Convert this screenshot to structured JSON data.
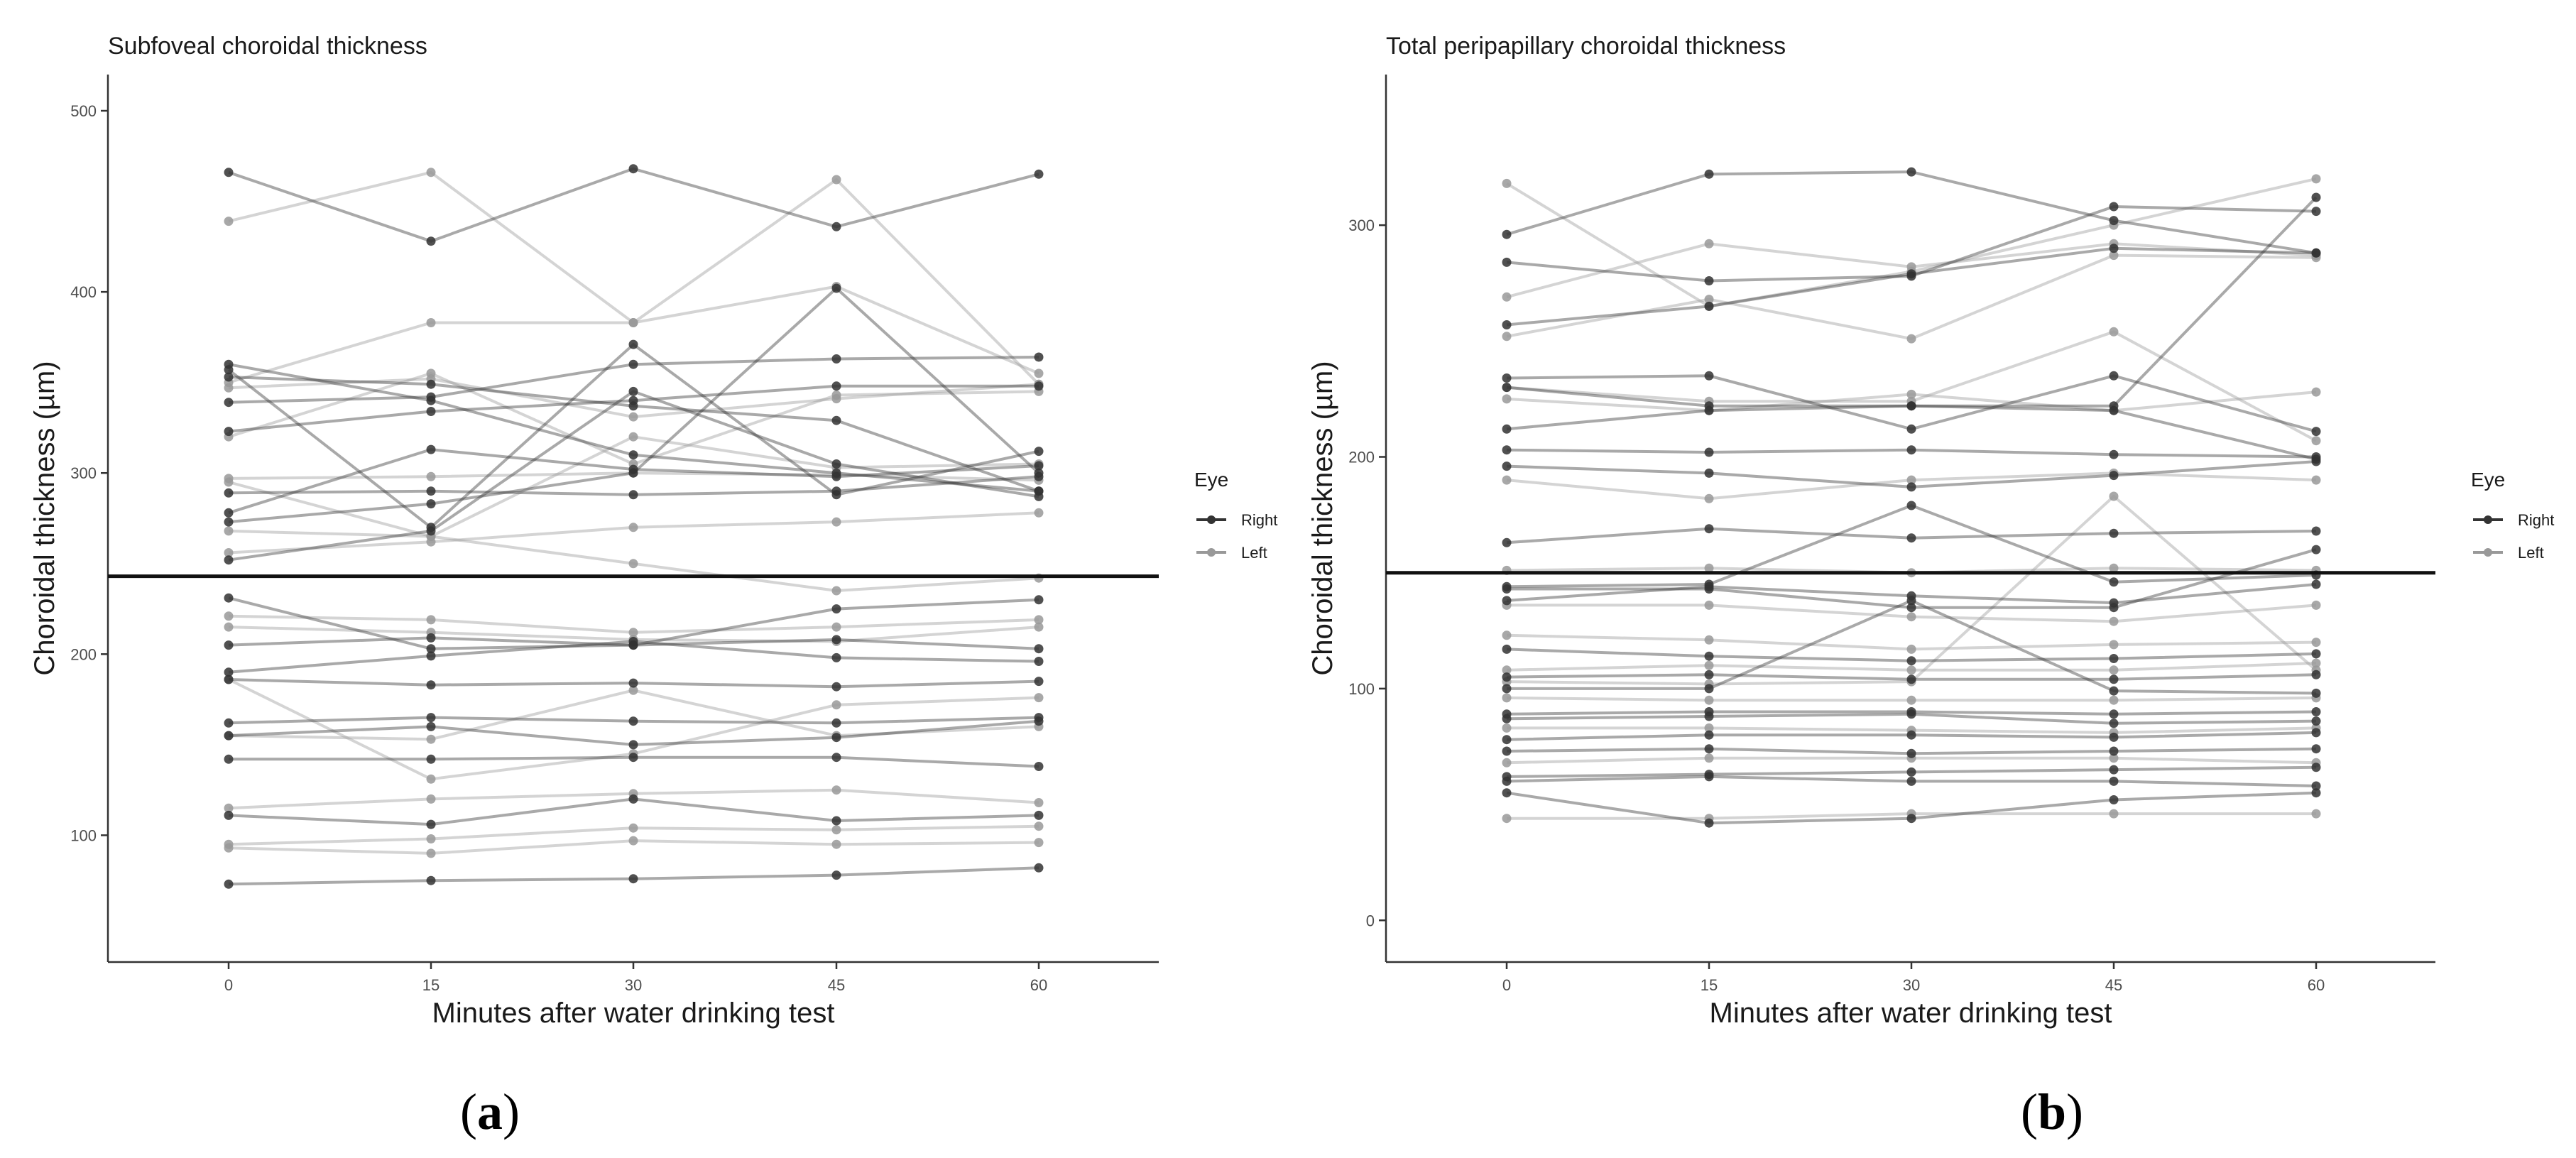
{
  "chart_data": [
    {
      "panel": "a",
      "panel_label": {
        "open": "(",
        "letter": "a",
        "close": ")"
      },
      "type": "line",
      "title": "Subfoveal choroidal thickness",
      "xlabel": "Minutes after water drinking test",
      "ylabel": "Choroidal thickness (µm)",
      "x": [
        0,
        15,
        30,
        45,
        60
      ],
      "xticks": [
        "0",
        "15",
        "30",
        "45",
        "60"
      ],
      "ylim": [
        30,
        520
      ],
      "yticks": [
        100,
        200,
        300,
        400,
        500
      ],
      "ytick_labels": [
        "100",
        "200",
        "300",
        "400",
        "500"
      ],
      "reference_line": 243,
      "legend": {
        "title": "Eye",
        "entries": [
          "Right",
          "Left"
        ],
        "colors": [
          "#333333",
          "#999999"
        ],
        "position": "right"
      },
      "series": [
        {
          "name": "Right",
          "values": [
            466,
            428,
            468,
            436,
            465
          ]
        },
        {
          "name": "Left",
          "values": [
            439,
            466,
            383,
            462,
            349
          ]
        },
        {
          "name": "Left",
          "values": [
            350,
            383,
            383,
            403,
            355
          ]
        },
        {
          "name": "Right",
          "values": [
            360,
            340,
            310,
            300,
            290
          ]
        },
        {
          "name": "Right",
          "values": [
            357,
            270,
            371,
            288,
            312
          ]
        },
        {
          "name": "Right",
          "values": [
            353,
            349,
            337,
            329,
            290
          ]
        },
        {
          "name": "Right",
          "values": [
            339,
            342,
            360,
            363,
            364
          ]
        },
        {
          "name": "Left",
          "values": [
            347,
            352,
            331,
            341,
            349
          ]
        },
        {
          "name": "Right",
          "values": [
            323,
            334,
            340,
            348,
            348
          ]
        },
        {
          "name": "Left",
          "values": [
            320,
            355,
            305,
            343,
            345
          ]
        },
        {
          "name": "Right",
          "values": [
            289,
            290,
            288,
            290,
            298
          ]
        },
        {
          "name": "Right",
          "values": [
            278,
            313,
            302,
            298,
            304
          ]
        },
        {
          "name": "Left",
          "values": [
            297,
            298,
            300,
            299,
            296
          ]
        },
        {
          "name": "Right",
          "values": [
            273,
            283,
            300,
            402,
            300
          ]
        },
        {
          "name": "Left",
          "values": [
            268,
            265,
            320,
            303,
            305
          ]
        },
        {
          "name": "Left",
          "values": [
            256,
            262,
            270,
            273,
            278
          ]
        },
        {
          "name": "Right",
          "values": [
            252,
            268,
            345,
            305,
            287
          ]
        },
        {
          "name": "Left",
          "values": [
            295,
            265,
            250,
            235,
            242
          ]
        },
        {
          "name": "Right",
          "values": [
            231,
            203,
            205,
            225,
            230
          ]
        },
        {
          "name": "Left",
          "values": [
            221,
            219,
            212,
            215,
            219
          ]
        },
        {
          "name": "Left",
          "values": [
            215,
            212,
            208,
            207,
            215
          ]
        },
        {
          "name": "Right",
          "values": [
            205,
            209,
            205,
            208,
            203
          ]
        },
        {
          "name": "Right",
          "values": [
            190,
            199,
            207,
            198,
            196
          ]
        },
        {
          "name": "Right",
          "values": [
            186,
            183,
            184,
            182,
            185
          ]
        },
        {
          "name": "Left",
          "values": [
            186,
            131,
            145,
            172,
            176
          ]
        },
        {
          "name": "Right",
          "values": [
            162,
            165,
            163,
            162,
            165
          ]
        },
        {
          "name": "Left",
          "values": [
            155,
            153,
            180,
            155,
            160
          ]
        },
        {
          "name": "Right",
          "values": [
            155,
            160,
            150,
            154,
            163
          ]
        },
        {
          "name": "Right",
          "values": [
            142,
            142,
            143,
            143,
            138
          ]
        },
        {
          "name": "Left",
          "values": [
            115,
            120,
            123,
            125,
            118
          ]
        },
        {
          "name": "Right",
          "values": [
            111,
            106,
            120,
            108,
            111
          ]
        },
        {
          "name": "Left",
          "values": [
            95,
            98,
            104,
            103,
            105
          ]
        },
        {
          "name": "Left",
          "values": [
            93,
            90,
            97,
            95,
            96
          ]
        },
        {
          "name": "Right",
          "values": [
            73,
            75,
            76,
            78,
            82
          ]
        }
      ]
    },
    {
      "panel": "b",
      "panel_label": {
        "open": "(",
        "letter": "b",
        "close": ")"
      },
      "type": "line",
      "title": "Total peripapillary choroidal thickness",
      "xlabel": "Minutes after water drinking test",
      "ylabel": "Choroidal thickness (µm)",
      "x": [
        0,
        15,
        30,
        45,
        60
      ],
      "xticks": [
        "0",
        "15",
        "30",
        "45",
        "60"
      ],
      "ylim": [
        -18,
        365
      ],
      "yticks": [
        0,
        100,
        200,
        300
      ],
      "ytick_labels": [
        "0",
        "100",
        "200",
        "300"
      ],
      "reference_line": 150,
      "legend": {
        "title": "Eye",
        "entries": [
          "Right",
          "Left"
        ],
        "colors": [
          "#333333",
          "#999999"
        ],
        "position": "right"
      },
      "series": [
        {
          "name": "Left",
          "values": [
            318,
            265,
            280,
            300,
            320
          ]
        },
        {
          "name": "Right",
          "values": [
            296,
            322,
            323,
            302,
            288
          ]
        },
        {
          "name": "Right",
          "values": [
            284,
            276,
            278,
            308,
            306
          ]
        },
        {
          "name": "Left",
          "values": [
            269,
            292,
            282,
            292,
            287
          ]
        },
        {
          "name": "Right",
          "values": [
            257,
            265,
            279,
            290,
            288
          ]
        },
        {
          "name": "Left",
          "values": [
            252,
            268,
            251,
            287,
            286
          ]
        },
        {
          "name": "Right",
          "values": [
            234,
            235,
            212,
            235,
            211
          ]
        },
        {
          "name": "Left",
          "values": [
            230,
            224,
            224,
            254,
            207
          ]
        },
        {
          "name": "Right",
          "values": [
            230,
            222,
            222,
            220,
            199
          ]
        },
        {
          "name": "Left",
          "values": [
            225,
            220,
            227,
            220,
            228
          ]
        },
        {
          "name": "Right",
          "values": [
            212,
            220,
            222,
            222,
            312
          ]
        },
        {
          "name": "Right",
          "values": [
            203,
            202,
            203,
            201,
            200
          ]
        },
        {
          "name": "Right",
          "values": [
            196,
            193,
            187,
            192,
            198
          ]
        },
        {
          "name": "Left",
          "values": [
            190,
            182,
            190,
            193,
            190
          ]
        },
        {
          "name": "Right",
          "values": [
            163,
            169,
            165,
            167,
            168
          ]
        },
        {
          "name": "Left",
          "values": [
            151,
            152,
            150,
            152,
            151
          ]
        },
        {
          "name": "Right",
          "values": [
            144,
            145,
            179,
            146,
            149
          ]
        },
        {
          "name": "Right",
          "values": [
            143,
            143,
            135,
            135,
            160
          ]
        },
        {
          "name": "Right",
          "values": [
            138,
            144,
            140,
            137,
            145
          ]
        },
        {
          "name": "Left",
          "values": [
            136,
            136,
            131,
            129,
            136
          ]
        },
        {
          "name": "Left",
          "values": [
            123,
            121,
            117,
            119,
            120
          ]
        },
        {
          "name": "Right",
          "values": [
            117,
            114,
            112,
            113,
            115
          ]
        },
        {
          "name": "Left",
          "values": [
            108,
            110,
            108,
            108,
            111
          ]
        },
        {
          "name": "Right",
          "values": [
            105,
            106,
            104,
            104,
            106
          ]
        },
        {
          "name": "Left",
          "values": [
            103,
            102,
            103,
            183,
            108
          ]
        },
        {
          "name": "Right",
          "values": [
            100,
            100,
            138,
            99,
            98
          ]
        },
        {
          "name": "Left",
          "values": [
            96,
            95,
            95,
            95,
            96
          ]
        },
        {
          "name": "Right",
          "values": [
            89,
            90,
            90,
            89,
            90
          ]
        },
        {
          "name": "Right",
          "values": [
            87,
            88,
            89,
            85,
            86
          ]
        },
        {
          "name": "Left",
          "values": [
            83,
            83,
            82,
            81,
            83
          ]
        },
        {
          "name": "Right",
          "values": [
            78,
            80,
            80,
            79,
            81
          ]
        },
        {
          "name": "Right",
          "values": [
            73,
            74,
            72,
            73,
            74
          ]
        },
        {
          "name": "Left",
          "values": [
            68,
            70,
            70,
            70,
            68
          ]
        },
        {
          "name": "Right",
          "values": [
            62,
            63,
            64,
            65,
            66
          ]
        },
        {
          "name": "Right",
          "values": [
            60,
            62,
            60,
            60,
            58
          ]
        },
        {
          "name": "Right",
          "values": [
            55,
            42,
            44,
            52,
            55
          ]
        },
        {
          "name": "Left",
          "values": [
            44,
            44,
            46,
            46,
            46
          ]
        }
      ]
    }
  ]
}
